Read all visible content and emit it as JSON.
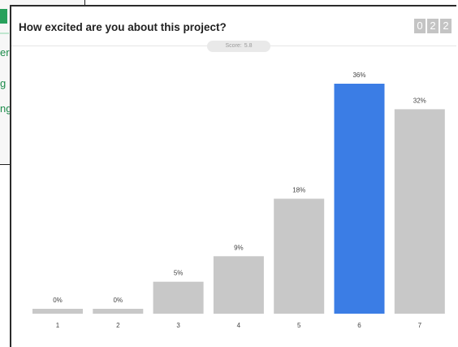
{
  "background_window": {
    "items": [
      "er",
      "g",
      "ng"
    ]
  },
  "question": {
    "title": "How excited are you about this project?",
    "counter": [
      "0",
      "2",
      "2"
    ],
    "score_label": "Score:",
    "score_value": "5.8"
  },
  "colors": {
    "bar_default": "#c8c8c8",
    "bar_highlight": "#3b7de5",
    "accent_green": "#27a15b"
  },
  "chart_data": {
    "type": "bar",
    "title": "",
    "xlabel": "",
    "ylabel": "",
    "categories": [
      "1",
      "2",
      "3",
      "4",
      "5",
      "6",
      "7"
    ],
    "values": [
      0,
      0,
      5,
      9,
      18,
      36,
      32
    ],
    "labels": [
      "0%",
      "0%",
      "5%",
      "9%",
      "18%",
      "36%",
      "32%"
    ],
    "highlighted_category": "6",
    "ylim": [
      0,
      36
    ],
    "grid": false
  }
}
